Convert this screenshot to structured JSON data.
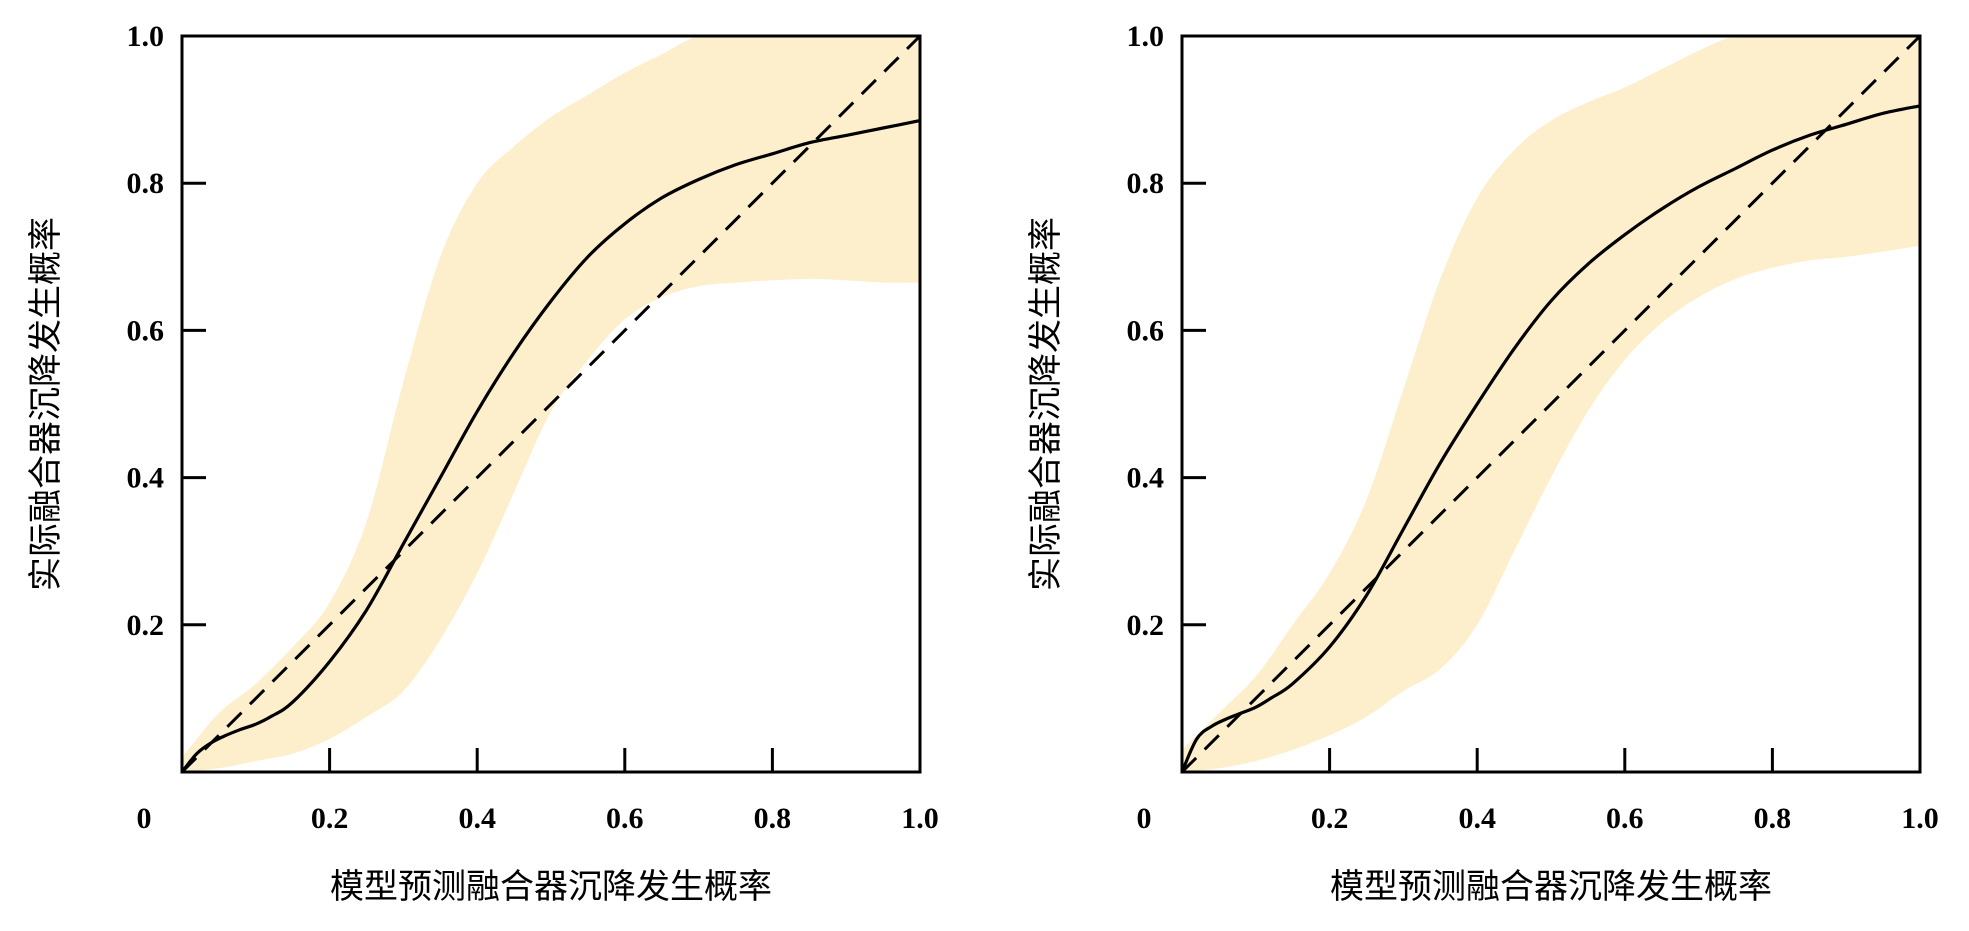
{
  "colors": {
    "band": "#fdefcc",
    "curve": "#000000",
    "diagonal": "#000000",
    "frame": "#000000"
  },
  "chart_data": [
    {
      "type": "line",
      "title": "",
      "xlabel": "模型预测融合器沉降发生概率",
      "ylabel": "实际融合器沉降发生概率",
      "xlim": [
        0,
        1
      ],
      "ylim": [
        0,
        1
      ],
      "origin_label": "0",
      "xticks": [
        0.2,
        0.4,
        0.6,
        0.8,
        1.0
      ],
      "xtick_labels": [
        "0.2",
        "0.4",
        "0.6",
        "0.8",
        "1.0"
      ],
      "yticks": [
        0.2,
        0.4,
        0.6,
        0.8,
        1.0
      ],
      "ytick_labels": [
        "0.2",
        "0.4",
        "0.6",
        "0.8",
        "1.0"
      ],
      "grid": false,
      "series": [
        {
          "style": "solid",
          "x": [
            0,
            0.02,
            0.04,
            0.06,
            0.08,
            0.1,
            0.12,
            0.15,
            0.2,
            0.25,
            0.3,
            0.35,
            0.4,
            0.45,
            0.5,
            0.55,
            0.6,
            0.65,
            0.7,
            0.75,
            0.8,
            0.85,
            0.9,
            0.95,
            1.0
          ],
          "y": [
            0,
            0.025,
            0.04,
            0.05,
            0.058,
            0.065,
            0.075,
            0.095,
            0.15,
            0.22,
            0.31,
            0.4,
            0.49,
            0.57,
            0.64,
            0.7,
            0.745,
            0.78,
            0.805,
            0.825,
            0.84,
            0.855,
            0.865,
            0.875,
            0.885
          ]
        },
        {
          "style": "dashed",
          "x": [
            0,
            1
          ],
          "y": [
            0,
            1
          ]
        }
      ],
      "band": {
        "x": [
          0,
          0.05,
          0.1,
          0.15,
          0.2,
          0.25,
          0.3,
          0.35,
          0.4,
          0.45,
          0.5,
          0.55,
          0.6,
          0.65,
          0.7,
          0.75,
          0.8,
          0.85,
          0.9,
          0.95,
          1.0
        ],
        "upper": [
          0.02,
          0.08,
          0.12,
          0.17,
          0.23,
          0.34,
          0.53,
          0.7,
          0.8,
          0.85,
          0.89,
          0.92,
          0.95,
          0.975,
          1.0,
          1.0,
          1.0,
          1.0,
          1.0,
          1.0,
          1.0
        ],
        "lower": [
          0,
          0.005,
          0.015,
          0.025,
          0.045,
          0.075,
          0.11,
          0.18,
          0.27,
          0.38,
          0.49,
          0.56,
          0.615,
          0.645,
          0.66,
          0.665,
          0.668,
          0.67,
          0.668,
          0.665,
          0.665
        ]
      }
    },
    {
      "type": "line",
      "title": "",
      "xlabel": "模型预测融合器沉降发生概率",
      "ylabel": "实际融合器沉降发生概率",
      "xlim": [
        0,
        1
      ],
      "ylim": [
        0,
        1
      ],
      "origin_label": "0",
      "xticks": [
        0.2,
        0.4,
        0.6,
        0.8,
        1.0
      ],
      "xtick_labels": [
        "0.2",
        "0.4",
        "0.6",
        "0.8",
        "1.0"
      ],
      "yticks": [
        0.2,
        0.4,
        0.6,
        0.8,
        1.0
      ],
      "ytick_labels": [
        "0.2",
        "0.4",
        "0.6",
        "0.8",
        "1.0"
      ],
      "grid": false,
      "series": [
        {
          "style": "solid",
          "x": [
            0,
            0.02,
            0.04,
            0.06,
            0.08,
            0.1,
            0.12,
            0.15,
            0.2,
            0.25,
            0.3,
            0.35,
            0.4,
            0.45,
            0.5,
            0.55,
            0.6,
            0.65,
            0.7,
            0.75,
            0.8,
            0.85,
            0.9,
            0.95,
            1.0
          ],
          "y": [
            0,
            0.045,
            0.062,
            0.072,
            0.08,
            0.088,
            0.1,
            0.12,
            0.17,
            0.24,
            0.33,
            0.42,
            0.5,
            0.575,
            0.64,
            0.69,
            0.73,
            0.765,
            0.795,
            0.82,
            0.845,
            0.865,
            0.88,
            0.895,
            0.905
          ]
        },
        {
          "style": "dashed",
          "x": [
            0,
            1
          ],
          "y": [
            0,
            1
          ]
        }
      ],
      "band": {
        "x": [
          0,
          0.05,
          0.1,
          0.15,
          0.2,
          0.25,
          0.3,
          0.35,
          0.4,
          0.45,
          0.5,
          0.55,
          0.6,
          0.65,
          0.7,
          0.75,
          0.8,
          0.85,
          0.9,
          0.95,
          1.0
        ],
        "upper": [
          0.03,
          0.08,
          0.13,
          0.2,
          0.27,
          0.37,
          0.52,
          0.67,
          0.78,
          0.845,
          0.885,
          0.91,
          0.93,
          0.955,
          0.98,
          1.0,
          1.0,
          1.0,
          1.0,
          1.0,
          1.0
        ],
        "lower": [
          0,
          0.005,
          0.015,
          0.03,
          0.05,
          0.075,
          0.11,
          0.14,
          0.2,
          0.3,
          0.4,
          0.49,
          0.56,
          0.61,
          0.645,
          0.67,
          0.685,
          0.695,
          0.7,
          0.707,
          0.715
        ]
      }
    }
  ]
}
